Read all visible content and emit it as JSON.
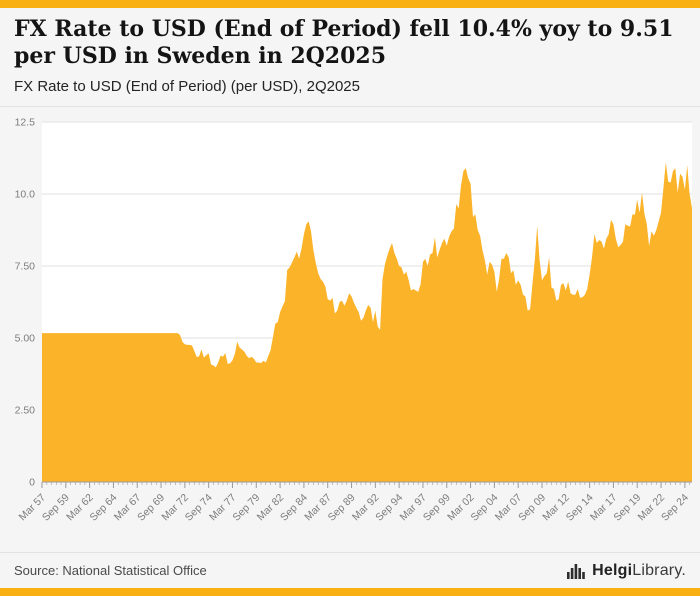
{
  "colors": {
    "accent": "#f9b013",
    "area": "#fbb329",
    "plot_bg": "#ffffff",
    "grid": "#e1e1e1",
    "axis": "#9b9b9b",
    "axis_text": "#7d7d7d"
  },
  "header": {
    "title": "FX Rate to USD (End of Period) fell 10.4% yoy to 9.51 per USD in Sweden in 2Q2025",
    "subtitle": "FX Rate to USD (End of Period) (per USD), 2Q2025"
  },
  "footer": {
    "source": "Source: National Statistical Office",
    "brand_bold": "Helgi",
    "brand_regular": "Library."
  },
  "chart_data": {
    "type": "area",
    "title": "FX Rate to USD (End of Period) (per USD), 2Q2025",
    "country": "Sweden",
    "unit": "per USD",
    "frequency": "quarterly",
    "x_start": "Mar 57",
    "x_end": "2Q2025",
    "latest_value": 9.51,
    "yoy_change_pct": -10.4,
    "ylim": [
      0,
      12.5
    ],
    "y_ticks": [
      0,
      2.5,
      5,
      7.5,
      10,
      12.5
    ],
    "y_tick_labels": [
      "0",
      "2.50",
      "5.00",
      "7.50",
      "10.0",
      "12.5"
    ],
    "x_tick_every": 10,
    "x_tick_labels": [
      "Mar 57",
      "Sep 59",
      "Mar 62",
      "Sep 64",
      "Mar 67",
      "Sep 69",
      "Mar 72",
      "Sep 74",
      "Mar 77",
      "Sep 79",
      "Mar 82",
      "Sep 84",
      "Mar 87",
      "Sep 89",
      "Mar 92",
      "Sep 94",
      "Mar 97",
      "Sep 99",
      "Mar 02",
      "Sep 04",
      "Mar 07",
      "Sep 09",
      "Mar 12",
      "Sep 14",
      "Mar 17",
      "Sep 19",
      "Mar 22",
      "Sep 24"
    ],
    "values": [
      5.17,
      5.17,
      5.17,
      5.17,
      5.17,
      5.17,
      5.17,
      5.17,
      5.17,
      5.17,
      5.17,
      5.17,
      5.17,
      5.17,
      5.17,
      5.17,
      5.17,
      5.17,
      5.17,
      5.17,
      5.17,
      5.17,
      5.17,
      5.17,
      5.17,
      5.17,
      5.17,
      5.17,
      5.17,
      5.17,
      5.17,
      5.17,
      5.17,
      5.17,
      5.17,
      5.17,
      5.17,
      5.17,
      5.17,
      5.17,
      5.17,
      5.17,
      5.17,
      5.17,
      5.17,
      5.17,
      5.17,
      5.17,
      5.17,
      5.17,
      5.17,
      5.17,
      5.17,
      5.17,
      5.17,
      5.17,
      5.17,
      5.17,
      5.1,
      4.86,
      4.78,
      4.76,
      4.76,
      4.74,
      4.54,
      4.34,
      4.36,
      4.6,
      4.32,
      4.4,
      4.47,
      4.08,
      4.05,
      3.98,
      4.15,
      4.39,
      4.35,
      4.48,
      4.1,
      4.12,
      4.23,
      4.45,
      4.87,
      4.67,
      4.6,
      4.52,
      4.38,
      4.3,
      4.35,
      4.28,
      4.15,
      4.15,
      4.13,
      4.21,
      4.15,
      4.37,
      4.58,
      5.05,
      5.5,
      5.55,
      5.9,
      6.1,
      6.28,
      7.36,
      7.45,
      7.62,
      7.8,
      8.0,
      7.75,
      8.1,
      8.6,
      8.95,
      9.05,
      8.7,
      8.05,
      7.6,
      7.25,
      7.05,
      6.95,
      6.8,
      6.35,
      6.3,
      6.4,
      5.85,
      5.95,
      6.25,
      6.3,
      6.12,
      6.3,
      6.55,
      6.45,
      6.23,
      6.05,
      5.9,
      5.6,
      5.7,
      5.95,
      6.15,
      6.05,
      5.55,
      5.95,
      5.4,
      5.28,
      7.05,
      7.55,
      7.85,
      8.1,
      8.3,
      7.95,
      7.75,
      7.5,
      7.46,
      7.2,
      7.3,
      7.0,
      6.65,
      6.7,
      6.65,
      6.6,
      6.87,
      7.65,
      7.75,
      7.5,
      7.9,
      7.95,
      8.5,
      7.8,
      8.06,
      8.3,
      8.45,
      8.2,
      8.52,
      8.7,
      8.8,
      9.65,
      9.5,
      10.3,
      10.8,
      10.9,
      10.55,
      10.35,
      9.2,
      9.3,
      8.75,
      8.55,
      8.05,
      7.7,
      7.2,
      7.65,
      7.55,
      7.3,
      6.6,
      7.05,
      7.75,
      7.75,
      7.95,
      7.8,
      7.25,
      7.35,
      6.85,
      7.0,
      6.85,
      6.5,
      6.45,
      5.95,
      6.0,
      6.9,
      7.75,
      8.9,
      7.7,
      7.0,
      7.15,
      7.25,
      7.8,
      6.75,
      6.7,
      6.3,
      6.35,
      6.85,
      6.9,
      6.65,
      6.95,
      6.55,
      6.5,
      6.5,
      6.7,
      6.4,
      6.42,
      6.5,
      6.7,
      7.2,
      7.8,
      8.6,
      8.3,
      8.4,
      8.35,
      8.1,
      8.45,
      8.6,
      9.1,
      8.95,
      8.45,
      8.15,
      8.23,
      8.35,
      8.95,
      8.9,
      8.87,
      9.3,
      9.28,
      9.8,
      9.35,
      10.05,
      9.32,
      8.95,
      8.19,
      8.7,
      8.55,
      8.75,
      9.05,
      9.35,
      10.2,
      11.1,
      10.43,
      10.4,
      10.8,
      10.9,
      10.05,
      10.7,
      10.6,
      10.15,
      11.0,
      10.0,
      9.51
    ]
  }
}
